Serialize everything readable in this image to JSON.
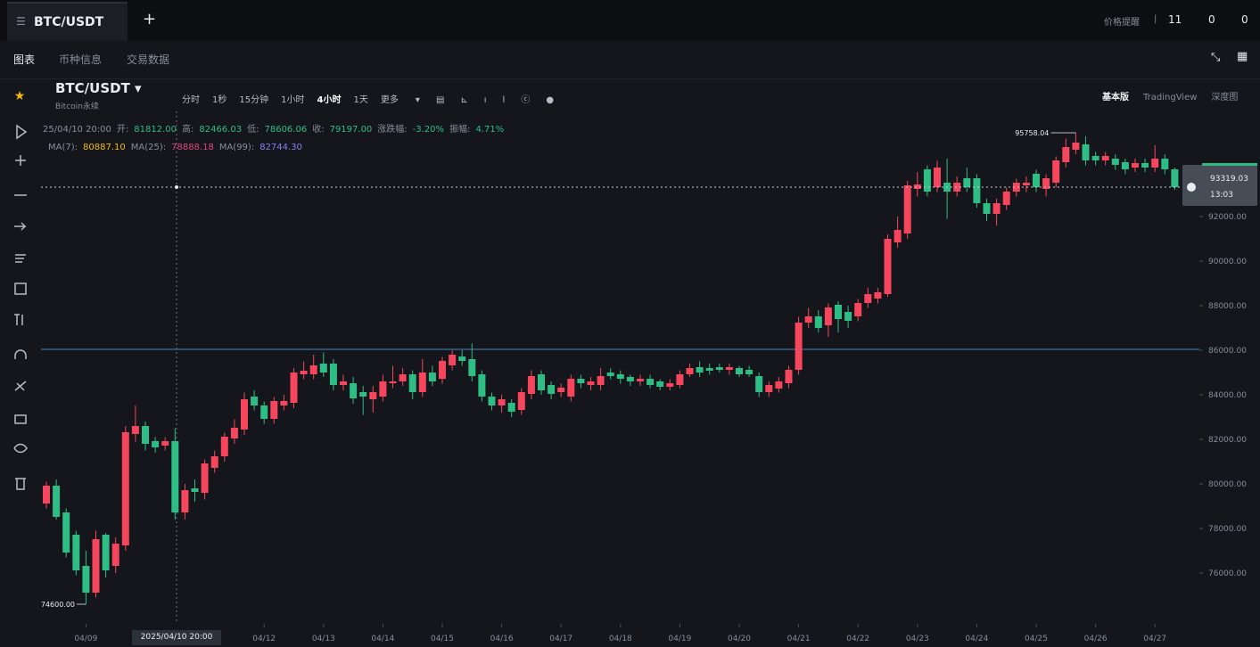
{
  "tabs": {
    "symbol": "BTC/USDT",
    "add": "+"
  },
  "top_right": [
    "价格提醒",
    "|",
    "11",
    "0",
    "0"
  ],
  "nav": [
    "图表",
    "币种信息",
    "交易数据"
  ],
  "toolbar": {
    "symbol": "BTC/USDT",
    "subtitle": "Bitcoin永续",
    "intervals": [
      "分时",
      "1秒",
      "15分钟",
      "1小时",
      "4小时",
      "1天",
      "更多"
    ],
    "views": [
      "基本版",
      "TradingView",
      "深度图"
    ]
  },
  "ohlc_legend": {
    "time": "25/04/10 20:00",
    "items": [
      [
        "开:",
        "81812.00"
      ],
      [
        "高:",
        "82466.03"
      ],
      [
        "低:",
        "78606.06"
      ],
      [
        "收:",
        "79197.00"
      ],
      [
        "涨跌幅:",
        "-3.20%"
      ],
      [
        "振幅:",
        "4.71%"
      ]
    ]
  },
  "ma_legend": [
    [
      "MA(7):",
      "80887.10"
    ],
    [
      "MA(25):",
      "78888.18"
    ],
    [
      "MA(99):",
      "82744.30"
    ]
  ],
  "crosshair_label": "2025/04/10 20:00",
  "chart_data": {
    "type": "candlestick",
    "up_color": "#f6465d",
    "down_color": "#2ebd85",
    "categories": [
      null,
      null,
      null,
      null,
      "04/09",
      null,
      null,
      null,
      null,
      null,
      null,
      null,
      null,
      null,
      null,
      null,
      null,
      null,
      null,
      null,
      null,
      null,
      "04/12",
      null,
      null,
      null,
      null,
      null,
      "04/13",
      null,
      null,
      null,
      null,
      null,
      "04/14",
      null,
      null,
      null,
      null,
      null,
      "04/15",
      null,
      null,
      null,
      null,
      null,
      "04/16",
      null,
      null,
      null,
      null,
      null,
      "04/17",
      null,
      null,
      null,
      null,
      null,
      "04/18",
      null,
      null,
      null,
      null,
      null,
      "04/19",
      null,
      null,
      null,
      null,
      null,
      "04/20",
      null,
      null,
      null,
      null,
      null,
      "04/21",
      null,
      null,
      null,
      null,
      null,
      "04/22",
      null,
      null,
      null,
      null,
      null,
      "04/23",
      null,
      null,
      null,
      null,
      null,
      "04/24",
      null,
      null,
      null,
      null,
      null,
      "04/25",
      null,
      null,
      null,
      null,
      null,
      "04/26",
      null,
      null,
      null,
      null,
      null,
      "04/27",
      null,
      null
    ],
    "ohlc": [
      [
        79120,
        80100,
        78900,
        79920
      ],
      [
        79920,
        80200,
        78400,
        78520
      ],
      [
        78720,
        78900,
        76700,
        76920
      ],
      [
        77720,
        77900,
        75900,
        76120
      ],
      [
        76320,
        77000,
        74600,
        75120
      ],
      [
        75120,
        77900,
        74900,
        77520
      ],
      [
        77720,
        77800,
        75800,
        76120
      ],
      [
        76320,
        77600,
        76000,
        77320
      ],
      [
        77240,
        82600,
        77000,
        82320
      ],
      [
        82240,
        83520,
        81900,
        82600
      ],
      [
        82600,
        82800,
        81500,
        81800
      ],
      [
        81920,
        82100,
        81400,
        81640
      ],
      [
        81720,
        82100,
        81500,
        81920
      ],
      [
        81920,
        82500,
        78400,
        78720
      ],
      [
        78720,
        80000,
        78400,
        79720
      ],
      [
        79800,
        80200,
        79200,
        79640
      ],
      [
        79600,
        81100,
        79300,
        80920
      ],
      [
        80720,
        81500,
        80500,
        81240
      ],
      [
        81240,
        82300,
        81000,
        82120
      ],
      [
        82040,
        82900,
        81800,
        82520
      ],
      [
        82440,
        84100,
        82200,
        83800
      ],
      [
        83920,
        84200,
        83300,
        83520
      ],
      [
        83520,
        83700,
        82700,
        82920
      ],
      [
        82920,
        83900,
        82700,
        83720
      ],
      [
        83520,
        84000,
        83300,
        83720
      ],
      [
        83640,
        85200,
        83400,
        85000
      ],
      [
        84920,
        85500,
        84700,
        85080
      ],
      [
        84920,
        85800,
        84700,
        85320
      ],
      [
        85400,
        85900,
        84800,
        85000
      ],
      [
        85400,
        85600,
        84200,
        84440
      ],
      [
        84440,
        84900,
        84200,
        84600
      ],
      [
        84520,
        84800,
        83600,
        83840
      ],
      [
        84120,
        84400,
        83100,
        83920
      ],
      [
        83800,
        84400,
        83200,
        84120
      ],
      [
        83920,
        84900,
        83700,
        84600
      ],
      [
        84520,
        85300,
        84300,
        84600
      ],
      [
        84600,
        85200,
        84400,
        84920
      ],
      [
        84920,
        85100,
        83800,
        84120
      ],
      [
        84120,
        85600,
        83900,
        85000
      ],
      [
        85000,
        85300,
        84400,
        84600
      ],
      [
        84720,
        85700,
        84500,
        85520
      ],
      [
        85320,
        86000,
        85100,
        85800
      ],
      [
        85720,
        86000,
        85300,
        85520
      ],
      [
        85600,
        86300,
        84600,
        84840
      ],
      [
        84920,
        85100,
        83700,
        83920
      ],
      [
        83920,
        84100,
        83300,
        83520
      ],
      [
        83520,
        84000,
        83200,
        83800
      ],
      [
        83640,
        83800,
        83000,
        83240
      ],
      [
        83320,
        84300,
        83100,
        84120
      ],
      [
        84040,
        85100,
        83800,
        84840
      ],
      [
        84920,
        85100,
        84000,
        84200
      ],
      [
        84440,
        84600,
        83800,
        84040
      ],
      [
        84120,
        84500,
        83900,
        84320
      ],
      [
        83920,
        84900,
        83700,
        84720
      ],
      [
        84720,
        84900,
        84300,
        84520
      ],
      [
        84440,
        84800,
        84200,
        84600
      ],
      [
        84440,
        85200,
        84200,
        84840
      ],
      [
        85000,
        85200,
        84700,
        84840
      ],
      [
        84920,
        85100,
        84500,
        84720
      ],
      [
        84800,
        84900,
        84400,
        84600
      ],
      [
        84600,
        84900,
        84400,
        84720
      ],
      [
        84720,
        84900,
        84300,
        84440
      ],
      [
        84600,
        84700,
        84200,
        84360
      ],
      [
        84360,
        84700,
        84200,
        84520
      ],
      [
        84440,
        85100,
        84300,
        84920
      ],
      [
        84920,
        85400,
        84800,
        85200
      ],
      [
        85240,
        85500,
        84800,
        85000
      ],
      [
        85200,
        85400,
        84900,
        85080
      ],
      [
        85240,
        85400,
        85000,
        85120
      ],
      [
        85120,
        85400,
        84900,
        85240
      ],
      [
        85200,
        85300,
        84800,
        84920
      ],
      [
        85120,
        85300,
        84800,
        84920
      ],
      [
        84840,
        85000,
        83900,
        84120
      ],
      [
        84120,
        84600,
        83900,
        84440
      ],
      [
        84280,
        84800,
        84100,
        84600
      ],
      [
        84520,
        85300,
        84300,
        85120
      ],
      [
        85120,
        87500,
        84900,
        87240
      ],
      [
        87240,
        87900,
        87000,
        87520
      ],
      [
        87520,
        87800,
        86800,
        87000
      ],
      [
        87120,
        88100,
        86600,
        87920
      ],
      [
        88040,
        88200,
        86800,
        87400
      ],
      [
        87720,
        88000,
        87000,
        87320
      ],
      [
        87520,
        88300,
        87300,
        88120
      ],
      [
        88120,
        88800,
        87900,
        88520
      ],
      [
        88320,
        88800,
        88100,
        88600
      ],
      [
        88520,
        91200,
        88400,
        91000
      ],
      [
        90840,
        92000,
        90600,
        91400
      ],
      [
        91240,
        93600,
        91000,
        93400
      ],
      [
        93240,
        94000,
        92900,
        93440
      ],
      [
        94120,
        94300,
        92900,
        93120
      ],
      [
        93320,
        94500,
        93100,
        94200
      ],
      [
        93520,
        94600,
        91900,
        93120
      ],
      [
        93120,
        93800,
        92900,
        93520
      ],
      [
        93720,
        94200,
        93100,
        93320
      ],
      [
        93720,
        93900,
        92400,
        92600
      ],
      [
        92600,
        92800,
        91800,
        92120
      ],
      [
        92120,
        92800,
        91600,
        92600
      ],
      [
        92520,
        93300,
        92300,
        93120
      ],
      [
        93120,
        93700,
        92900,
        93520
      ],
      [
        93400,
        93800,
        93100,
        93520
      ],
      [
        93920,
        94100,
        93100,
        93320
      ],
      [
        93240,
        93900,
        92900,
        93720
      ],
      [
        93520,
        94700,
        93300,
        94520
      ],
      [
        94440,
        95500,
        94200,
        95120
      ],
      [
        95000,
        95758.04,
        94800,
        95320
      ],
      [
        95240,
        95600,
        94300,
        94520
      ],
      [
        94720,
        94900,
        94300,
        94520
      ],
      [
        94520,
        94900,
        94300,
        94720
      ],
      [
        94600,
        94800,
        94100,
        94320
      ],
      [
        94440,
        94600,
        93900,
        94120
      ],
      [
        94200,
        94600,
        94000,
        94400
      ],
      [
        94400,
        94600,
        94000,
        94200
      ],
      [
        94200,
        95200,
        94000,
        94600
      ],
      [
        94600,
        94800,
        93900,
        94120
      ],
      [
        94120,
        94200,
        93200,
        93319.03
      ]
    ],
    "high_label": "95758.04",
    "low_label": "74600.00",
    "countdown": "13:03",
    "ylim": [
      73720,
      98120
    ],
    "yticks": [
      {
        "value": 76000,
        "label": "76000.00"
      },
      {
        "value": 78000,
        "label": "78000.00"
      },
      {
        "value": 80000,
        "label": "80000.00"
      },
      {
        "value": 82000,
        "label": "82000.00"
      },
      {
        "value": 84000,
        "label": "84000.00"
      },
      {
        "value": 86000,
        "label": "86000.00"
      },
      {
        "value": 88000,
        "label": "88000.00"
      },
      {
        "value": 90000,
        "label": "90000.00"
      },
      {
        "value": 92000,
        "label": "92000.00"
      }
    ],
    "grid": false
  }
}
